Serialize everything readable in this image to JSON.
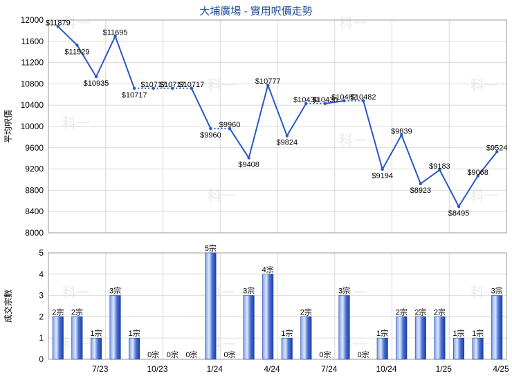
{
  "chart_data": [
    {
      "type": "line",
      "title": "大埔廣場 - 實用呎價走勢",
      "ylabel": "平均呎價",
      "ylim": [
        8000,
        12000
      ],
      "yticks": [
        8000,
        8400,
        8800,
        9200,
        9600,
        10000,
        10400,
        10800,
        11200,
        11600,
        12000
      ],
      "grid": true,
      "x_index": [
        0,
        1,
        2,
        3,
        4,
        5,
        6,
        7,
        8,
        9,
        10,
        11,
        12,
        13,
        14,
        15,
        16,
        17,
        18,
        19,
        20,
        21,
        22,
        23
      ],
      "values": [
        11879,
        11529,
        10935,
        11695,
        10717,
        10717,
        10717,
        10717,
        9960,
        9960,
        9408,
        10777,
        9824,
        10430,
        10430,
        10482,
        10482,
        9194,
        9839,
        8923,
        9183,
        8495,
        9068,
        9524
      ],
      "data_labels": [
        "$11879",
        "$11529",
        "$10935",
        "$11695",
        "$10717",
        "$10717",
        "$10717",
        "$10717",
        "$9960",
        "$9960",
        "$9408",
        "$10777",
        "$9824",
        "$10430",
        "$10430",
        "$10482",
        "$10482",
        "$9194",
        "$9839",
        "$8923",
        "$9183",
        "$8495",
        "$9068",
        "$9524"
      ],
      "dotted_segments": [
        [
          4,
          5
        ],
        [
          5,
          6
        ],
        [
          6,
          7
        ],
        [
          8,
          9
        ],
        [
          13,
          14
        ],
        [
          15,
          16
        ]
      ],
      "line_color": "#2a56c6",
      "watermark": "科一"
    },
    {
      "type": "bar",
      "ylabel": "成交宗數",
      "ylim": [
        0,
        5
      ],
      "yticks": [
        0,
        1,
        2,
        3,
        4,
        5
      ],
      "grid": true,
      "values": [
        2,
        2,
        1,
        3,
        1,
        0,
        0,
        0,
        5,
        0,
        3,
        4,
        1,
        2,
        0,
        3,
        0,
        1,
        2,
        2,
        2,
        1,
        1,
        3
      ],
      "data_labels": [
        "2宗",
        "2宗",
        "1宗",
        "3宗",
        "1宗",
        "0宗",
        "0宗",
        "0宗",
        "5宗",
        "0宗",
        "3宗",
        "4宗",
        "1宗",
        "2宗",
        "0宗",
        "3宗",
        "0宗",
        "1宗",
        "2宗",
        "2宗",
        "2宗",
        "1宗",
        "1宗",
        "3宗"
      ],
      "x_tick_labels": [
        {
          "at": 3,
          "label": "7/23"
        },
        {
          "at": 6,
          "label": "10/23"
        },
        {
          "at": 9,
          "label": "1/24"
        },
        {
          "at": 12,
          "label": "4/24"
        },
        {
          "at": 15,
          "label": "7/24"
        },
        {
          "at": 18,
          "label": "10/24"
        },
        {
          "at": 21,
          "label": "1/25"
        },
        {
          "at": 24,
          "label": "4/25"
        }
      ],
      "bar_color": "#2a56c6",
      "watermark": "科一"
    }
  ]
}
